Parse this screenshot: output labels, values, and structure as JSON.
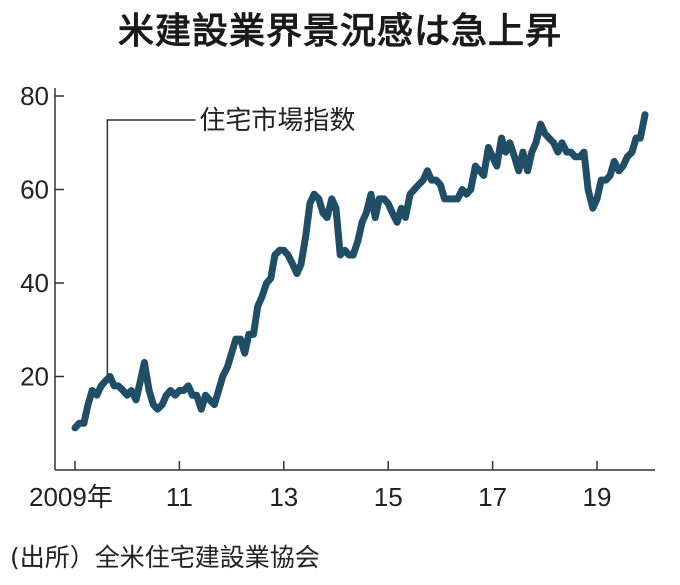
{
  "chart_data": {
    "type": "line",
    "title": "米建設業界景況感は急上昇",
    "source": "(出所）全米住宅建設業協会",
    "ylim": [
      0,
      80
    ],
    "yticks": [
      20,
      40,
      60,
      80
    ],
    "xticks": [
      {
        "year": 2009,
        "label": "2009年"
      },
      {
        "year": 2011,
        "label": "11"
      },
      {
        "year": 2013,
        "label": "13"
      },
      {
        "year": 2015,
        "label": "15"
      },
      {
        "year": 2017,
        "label": "17"
      },
      {
        "year": 2019,
        "label": "19"
      }
    ],
    "grid": false,
    "line_color": "#1f4e66",
    "series": [
      {
        "name": "住宅市場指数",
        "annotation_year": 2009.62,
        "points": [
          [
            2009.0,
            9
          ],
          [
            2009.08,
            10
          ],
          [
            2009.17,
            10
          ],
          [
            2009.25,
            14
          ],
          [
            2009.33,
            17
          ],
          [
            2009.42,
            16
          ],
          [
            2009.5,
            18
          ],
          [
            2009.58,
            19
          ],
          [
            2009.67,
            20
          ],
          [
            2009.75,
            18
          ],
          [
            2009.83,
            18
          ],
          [
            2009.92,
            17
          ],
          [
            2010.0,
            16
          ],
          [
            2010.08,
            17
          ],
          [
            2010.17,
            15
          ],
          [
            2010.25,
            19
          ],
          [
            2010.33,
            23
          ],
          [
            2010.42,
            17
          ],
          [
            2010.5,
            14
          ],
          [
            2010.58,
            13
          ],
          [
            2010.67,
            14
          ],
          [
            2010.75,
            16
          ],
          [
            2010.83,
            17
          ],
          [
            2010.92,
            16
          ],
          [
            2011.0,
            17
          ],
          [
            2011.08,
            17
          ],
          [
            2011.17,
            18
          ],
          [
            2011.25,
            16
          ],
          [
            2011.33,
            16
          ],
          [
            2011.42,
            13
          ],
          [
            2011.5,
            16
          ],
          [
            2011.58,
            15
          ],
          [
            2011.67,
            14
          ],
          [
            2011.75,
            17
          ],
          [
            2011.83,
            20
          ],
          [
            2011.92,
            22
          ],
          [
            2012.0,
            25
          ],
          [
            2012.08,
            28
          ],
          [
            2012.17,
            28
          ],
          [
            2012.25,
            25
          ],
          [
            2012.33,
            29
          ],
          [
            2012.42,
            29
          ],
          [
            2012.5,
            35
          ],
          [
            2012.58,
            37
          ],
          [
            2012.67,
            40
          ],
          [
            2012.75,
            41
          ],
          [
            2012.83,
            46
          ],
          [
            2012.92,
            47
          ],
          [
            2013.0,
            47
          ],
          [
            2013.08,
            46
          ],
          [
            2013.17,
            44
          ],
          [
            2013.25,
            42
          ],
          [
            2013.33,
            44
          ],
          [
            2013.42,
            50
          ],
          [
            2013.5,
            57
          ],
          [
            2013.58,
            59
          ],
          [
            2013.67,
            58
          ],
          [
            2013.75,
            55
          ],
          [
            2013.83,
            54
          ],
          [
            2013.92,
            58
          ],
          [
            2014.0,
            56
          ],
          [
            2014.08,
            46
          ],
          [
            2014.17,
            47
          ],
          [
            2014.25,
            46
          ],
          [
            2014.33,
            46
          ],
          [
            2014.42,
            49
          ],
          [
            2014.5,
            53
          ],
          [
            2014.58,
            55
          ],
          [
            2014.67,
            59
          ],
          [
            2014.75,
            54
          ],
          [
            2014.83,
            58
          ],
          [
            2014.92,
            58
          ],
          [
            2015.0,
            57
          ],
          [
            2015.08,
            55
          ],
          [
            2015.17,
            53
          ],
          [
            2015.25,
            56
          ],
          [
            2015.33,
            54
          ],
          [
            2015.42,
            59
          ],
          [
            2015.5,
            60
          ],
          [
            2015.58,
            61
          ],
          [
            2015.67,
            62
          ],
          [
            2015.75,
            64
          ],
          [
            2015.83,
            62
          ],
          [
            2015.92,
            62
          ],
          [
            2016.0,
            61
          ],
          [
            2016.08,
            58
          ],
          [
            2016.17,
            58
          ],
          [
            2016.25,
            58
          ],
          [
            2016.33,
            58
          ],
          [
            2016.42,
            60
          ],
          [
            2016.5,
            59
          ],
          [
            2016.58,
            60
          ],
          [
            2016.67,
            65
          ],
          [
            2016.75,
            64
          ],
          [
            2016.83,
            63
          ],
          [
            2016.92,
            69
          ],
          [
            2017.0,
            67
          ],
          [
            2017.08,
            65
          ],
          [
            2017.17,
            71
          ],
          [
            2017.25,
            68
          ],
          [
            2017.33,
            70
          ],
          [
            2017.42,
            67
          ],
          [
            2017.5,
            64
          ],
          [
            2017.58,
            68
          ],
          [
            2017.67,
            64
          ],
          [
            2017.75,
            68
          ],
          [
            2017.83,
            70
          ],
          [
            2017.92,
            74
          ],
          [
            2018.0,
            72
          ],
          [
            2018.08,
            71
          ],
          [
            2018.17,
            70
          ],
          [
            2018.25,
            68
          ],
          [
            2018.33,
            70
          ],
          [
            2018.42,
            68
          ],
          [
            2018.5,
            68
          ],
          [
            2018.58,
            67
          ],
          [
            2018.67,
            67
          ],
          [
            2018.75,
            68
          ],
          [
            2018.83,
            60
          ],
          [
            2018.92,
            56
          ],
          [
            2019.0,
            58
          ],
          [
            2019.08,
            62
          ],
          [
            2019.17,
            62
          ],
          [
            2019.25,
            63
          ],
          [
            2019.33,
            66
          ],
          [
            2019.42,
            64
          ],
          [
            2019.5,
            65
          ],
          [
            2019.58,
            67
          ],
          [
            2019.67,
            68
          ],
          [
            2019.75,
            71
          ],
          [
            2019.83,
            71
          ],
          [
            2019.92,
            76
          ]
        ]
      }
    ]
  }
}
